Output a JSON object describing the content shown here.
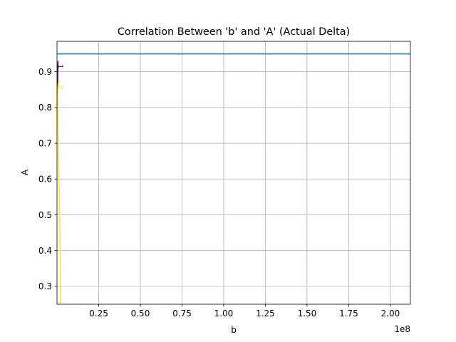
{
  "chart_data": {
    "type": "line",
    "title": "Correlation Between 'b' and 'A' (Actual Delta)",
    "xlabel": "b",
    "ylabel": "A",
    "x_offset_label": "1e8",
    "x_multiplier": 100000000,
    "xlim": [
      0,
      2.12
    ],
    "ylim": [
      0.25,
      0.985
    ],
    "x_ticks": [
      0.25,
      0.5,
      0.75,
      1.0,
      1.25,
      1.5,
      1.75,
      2.0
    ],
    "x_tick_labels": [
      "0.25",
      "0.50",
      "0.75",
      "1.00",
      "1.25",
      "1.50",
      "1.75",
      "2.00"
    ],
    "y_ticks": [
      0.3,
      0.4,
      0.5,
      0.6,
      0.7,
      0.8,
      0.9
    ],
    "y_tick_labels": [
      "0.3",
      "0.4",
      "0.5",
      "0.6",
      "0.7",
      "0.8",
      "0.9"
    ],
    "grid": true,
    "horizontal_line": {
      "y": 0.95,
      "color": "#1f77b4"
    },
    "contours": [
      {
        "label": "1",
        "color": "#440154",
        "label_at": {
          "x": 0.018,
          "y": 0.915
        },
        "points": [
          [
            0.002,
            0.84
          ],
          [
            0.003,
            0.86
          ],
          [
            0.004,
            0.88
          ],
          [
            0.005,
            0.905
          ],
          [
            0.006,
            0.93
          ]
        ]
      },
      {
        "label": "2",
        "color": "#fde725",
        "label_at": {
          "x": 0.018,
          "y": 0.857
        },
        "points": [
          [
            0.022,
            0.25
          ],
          [
            0.02,
            0.35
          ],
          [
            0.016,
            0.5
          ],
          [
            0.012,
            0.6
          ],
          [
            0.008,
            0.7
          ],
          [
            0.005,
            0.8
          ],
          [
            0.004,
            0.84
          ],
          [
            0.006,
            0.86
          ],
          [
            0.01,
            0.875
          ]
        ]
      }
    ]
  }
}
